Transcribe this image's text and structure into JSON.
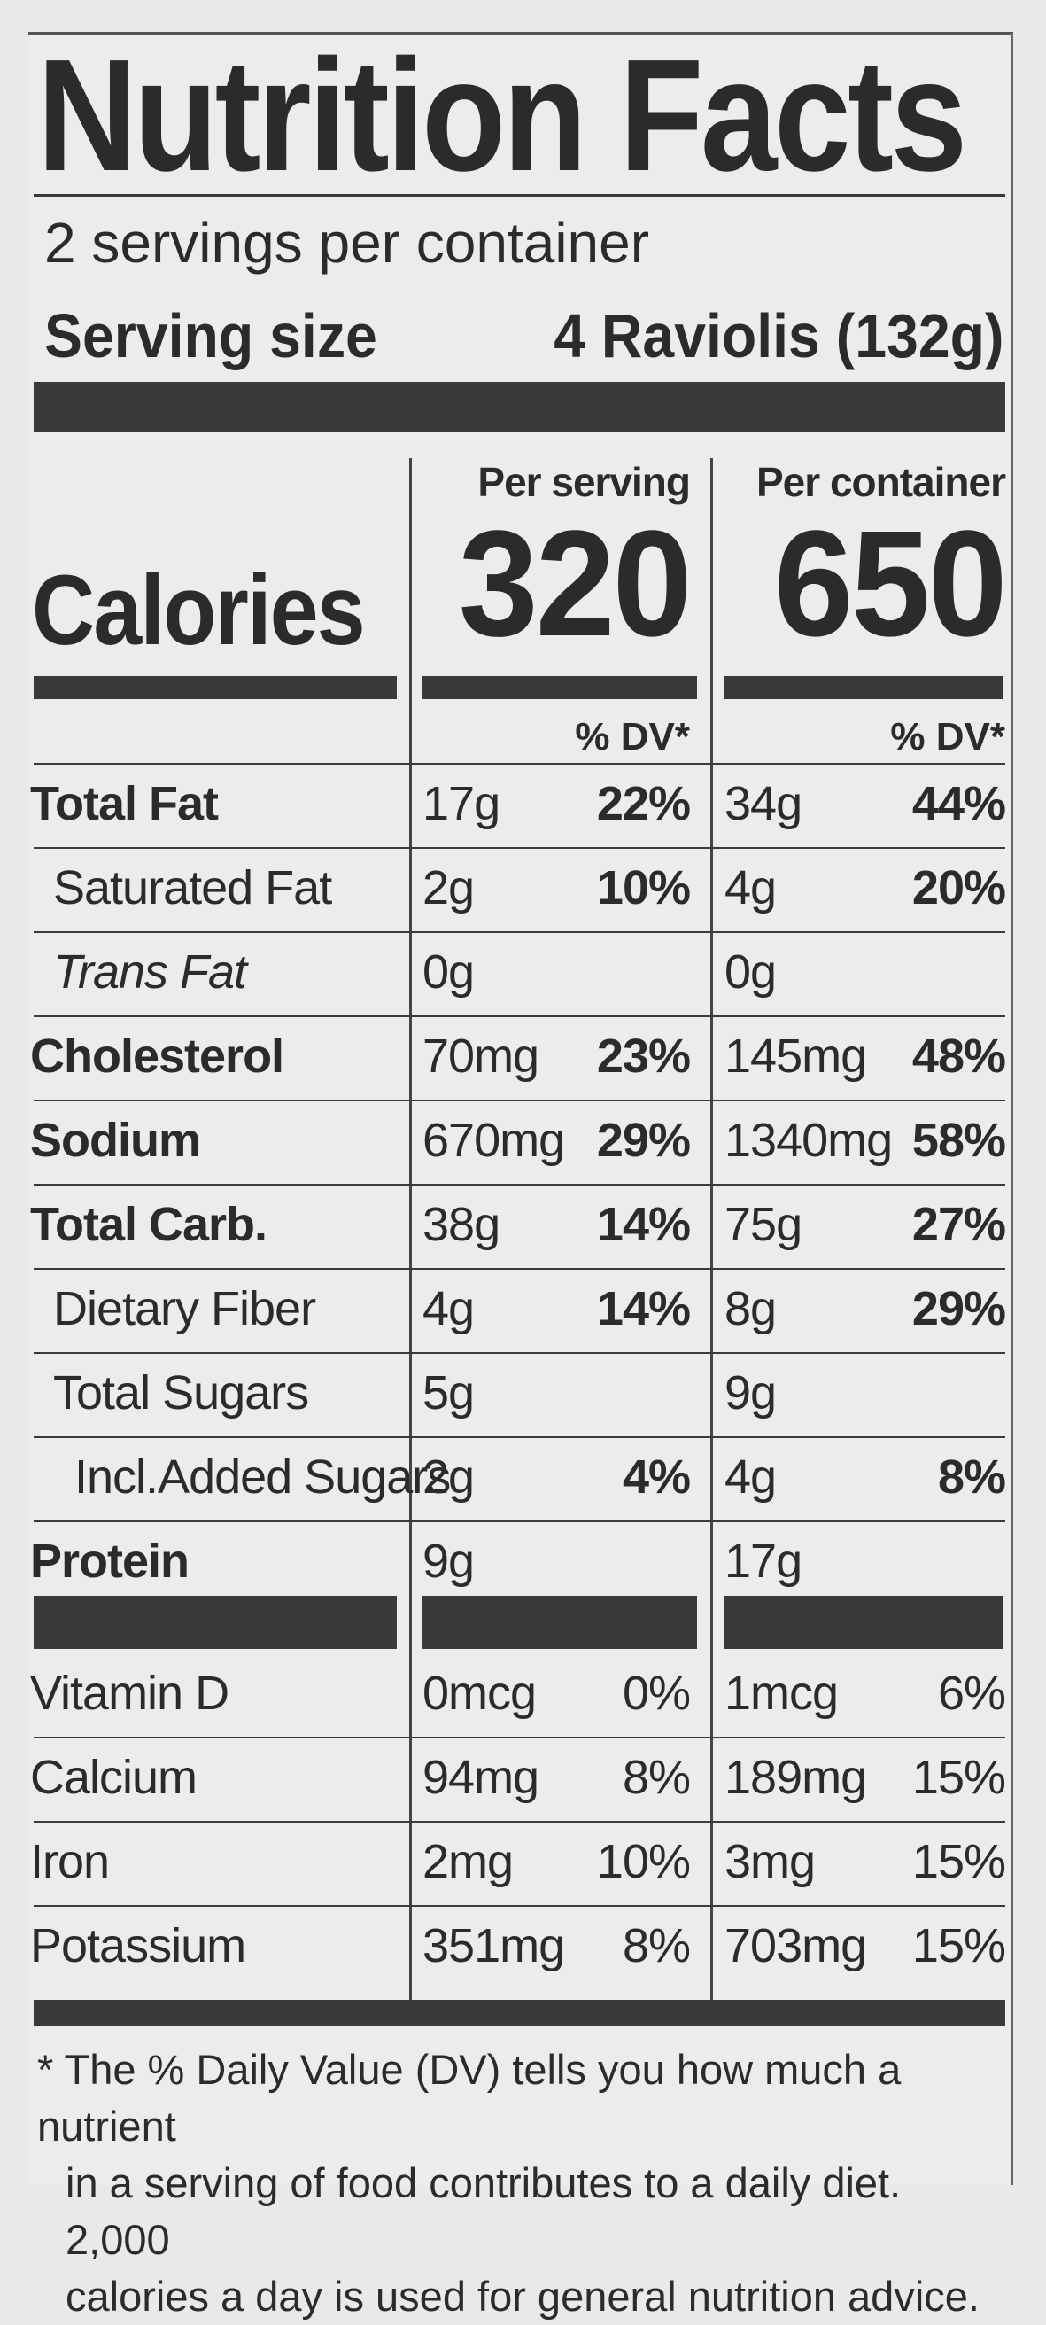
{
  "title": "Nutrition Facts",
  "servings_per_container": "2 servings per container",
  "serving_size_label": "Serving size",
  "serving_size_value": "4 Raviolis (132g)",
  "calories_label": "Calories",
  "columns": [
    {
      "heading": "Per serving",
      "calories": "320",
      "dv_heading": "% DV*"
    },
    {
      "heading": "Per container",
      "calories": "650",
      "dv_heading": "% DV*"
    }
  ],
  "nutrients": [
    {
      "name": "Total Fat",
      "style": "bold",
      "serving_amount": "17g",
      "serving_dv": "22%",
      "container_amount": "34g",
      "container_dv": "44%"
    },
    {
      "name": "Saturated Fat",
      "style": "indent",
      "serving_amount": "2g",
      "serving_dv": "10%",
      "container_amount": "4g",
      "container_dv": "20%"
    },
    {
      "name": "Trans Fat",
      "style": "italic",
      "serving_amount": "0g",
      "serving_dv": "",
      "container_amount": "0g",
      "container_dv": ""
    },
    {
      "name": "Cholesterol",
      "style": "bold",
      "serving_amount": "70mg",
      "serving_dv": "23%",
      "container_amount": "145mg",
      "container_dv": "48%"
    },
    {
      "name": "Sodium",
      "style": "bold",
      "serving_amount": "670mg",
      "serving_dv": "29%",
      "container_amount": "1340mg",
      "container_dv": "58%"
    },
    {
      "name": "Total Carb.",
      "style": "bold",
      "serving_amount": "38g",
      "serving_dv": "14%",
      "container_amount": "75g",
      "container_dv": "27%"
    },
    {
      "name": "Dietary Fiber",
      "style": "indent",
      "serving_amount": "4g",
      "serving_dv": "14%",
      "container_amount": "8g",
      "container_dv": "29%"
    },
    {
      "name": "Total Sugars",
      "style": "indent",
      "serving_amount": "5g",
      "serving_dv": "",
      "container_amount": "9g",
      "container_dv": ""
    },
    {
      "name": "Incl.Added Sugars",
      "style": "indent2",
      "serving_amount": "2g",
      "serving_dv": "4%",
      "container_amount": "4g",
      "container_dv": "8%"
    },
    {
      "name": "Protein",
      "style": "bold",
      "serving_amount": "9g",
      "serving_dv": "",
      "container_amount": "17g",
      "container_dv": ""
    }
  ],
  "vitamins": [
    {
      "name": "Vitamin D",
      "serving_amount": "0mcg",
      "serving_dv": "0%",
      "container_amount": "1mcg",
      "container_dv": "6%"
    },
    {
      "name": "Calcium",
      "serving_amount": "94mg",
      "serving_dv": "8%",
      "container_amount": "189mg",
      "container_dv": "15%"
    },
    {
      "name": "Iron",
      "serving_amount": "2mg",
      "serving_dv": "10%",
      "container_amount": "3mg",
      "container_dv": "15%"
    },
    {
      "name": "Potassium",
      "serving_amount": "351mg",
      "serving_dv": "8%",
      "container_amount": "703mg",
      "container_dv": "15%"
    }
  ],
  "footnote_line1": "* The % Daily Value (DV) tells you how much a nutrient",
  "footnote_line2": "in a serving of food contributes to a daily diet. 2,000",
  "footnote_line3": "calories a day is used for general nutrition advice."
}
